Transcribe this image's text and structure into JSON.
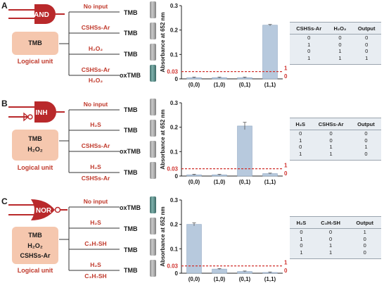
{
  "panels": [
    {
      "letter": "A",
      "gate": "AND",
      "unit_lines": [
        "TMB"
      ],
      "unit_caption": "Logical unit",
      "branches": [
        {
          "input_lines": [
            "No input"
          ],
          "output": "TMB"
        },
        {
          "input_lines": [
            "CSHSs-Ar"
          ],
          "output": "TMB"
        },
        {
          "input_lines": [
            "H₂O₂"
          ],
          "output": "TMB"
        },
        {
          "input_lines": [
            "CSHSs-Ar",
            "H₂O₂"
          ],
          "output": "oxTMB"
        }
      ],
      "table": {
        "headers": [
          "CSHSs-Ar",
          "H₂O₂",
          "Output"
        ],
        "rows": [
          [
            "0",
            "0",
            "0"
          ],
          [
            "1",
            "0",
            "0"
          ],
          [
            "0",
            "1",
            "0"
          ],
          [
            "1",
            "1",
            "1"
          ]
        ]
      }
    },
    {
      "letter": "B",
      "gate": "INH",
      "unit_lines": [
        "TMB",
        "H₂O₂"
      ],
      "unit_caption": "Logical unit",
      "branches": [
        {
          "input_lines": [
            "No input"
          ],
          "output": "TMB"
        },
        {
          "input_lines": [
            "H₂S"
          ],
          "output": "TMB"
        },
        {
          "input_lines": [
            "CSHSs-Ar"
          ],
          "output": "oxTMB"
        },
        {
          "input_lines": [
            "H₂S",
            "CSHSs-Ar"
          ],
          "output": "TMB"
        }
      ],
      "table": {
        "headers": [
          "H₂S",
          "CSHSs-Ar",
          "Output"
        ],
        "rows": [
          [
            "0",
            "0",
            "0"
          ],
          [
            "1",
            "0",
            "0"
          ],
          [
            "0",
            "1",
            "1"
          ],
          [
            "1",
            "1",
            "0"
          ]
        ]
      }
    },
    {
      "letter": "C",
      "gate": "NOR",
      "unit_lines": [
        "TMB",
        "H₂O₂",
        "CSHSs-Ar"
      ],
      "unit_caption": "Logical unit",
      "branches": [
        {
          "input_lines": [
            "No input"
          ],
          "output": "oxTMB"
        },
        {
          "input_lines": [
            "H₂S"
          ],
          "output": "TMB"
        },
        {
          "input_lines": [
            "C₃H₇SH"
          ],
          "output": "TMB"
        },
        {
          "input_lines": [
            "H₂S",
            "C₃H₇SH"
          ],
          "output": "TMB"
        }
      ],
      "table": {
        "headers": [
          "H₂S",
          "C₃H₇SH",
          "Output"
        ],
        "rows": [
          [
            "0",
            "0",
            "1"
          ],
          [
            "1",
            "0",
            "0"
          ],
          [
            "0",
            "1",
            "0"
          ],
          [
            "1",
            "1",
            "0"
          ]
        ]
      }
    }
  ],
  "chart_data": [
    {
      "type": "bar",
      "categories": [
        "(0,0)",
        "(1,0)",
        "(0,1)",
        "(1,1)"
      ],
      "values": [
        0.005,
        0.005,
        0.005,
        0.22
      ],
      "errors": [
        0.002,
        0.002,
        0.002,
        0.003
      ],
      "ylabel": "Absorbance at 652 nm",
      "ylim": [
        0,
        0.3
      ],
      "yticks": [
        "0",
        "0.1",
        "0.2",
        "0.3"
      ],
      "threshold": 0.03,
      "threshold_label": "0.03",
      "above_label": "1",
      "below_label": "0"
    },
    {
      "type": "bar",
      "categories": [
        "(0,0)",
        "(1,0)",
        "(0,1)",
        "(1,1)"
      ],
      "values": [
        0.005,
        0.005,
        0.205,
        0.01
      ],
      "errors": [
        0.002,
        0.002,
        0.015,
        0.002
      ],
      "ylabel": "Absorbance at 652 nm",
      "ylim": [
        0,
        0.3
      ],
      "yticks": [
        "0",
        "0.1",
        "0.2",
        "0.3"
      ],
      "threshold": 0.03,
      "threshold_label": "0.03",
      "above_label": "1",
      "below_label": "0"
    },
    {
      "type": "bar",
      "categories": [
        "(0,0)",
        "(1,0)",
        "(0,1)",
        "(1,1)"
      ],
      "values": [
        0.2,
        0.017,
        0.007,
        0.003
      ],
      "errors": [
        0.006,
        0.002,
        0.002,
        0.002
      ],
      "ylabel": "Absorbance at 652 nm",
      "ylim": [
        0,
        0.3
      ],
      "yticks": [
        "0",
        "0.1",
        "0.2",
        "0.3"
      ],
      "threshold": 0.03,
      "threshold_label": "0.03",
      "above_label": "1",
      "below_label": "0"
    }
  ],
  "colors": {
    "gate": "#b9292b",
    "box": "#f5c7ae",
    "accent_text": "#c0392b",
    "bar": "#b7c9dd",
    "threshold": "#d0312d",
    "table_bg": "#e8edf2"
  }
}
